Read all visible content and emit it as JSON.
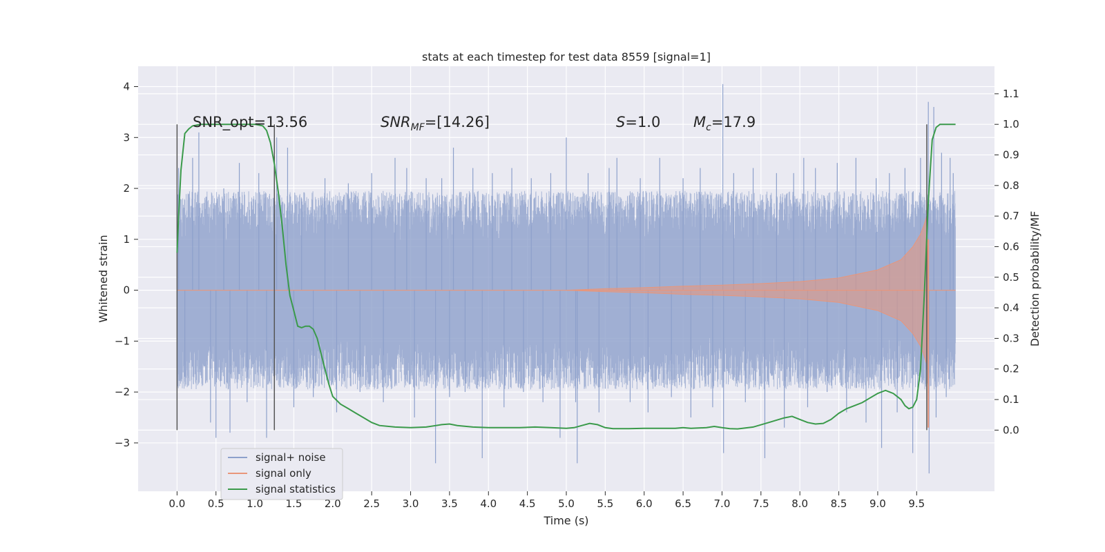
{
  "chart_data": {
    "type": "line",
    "title": "stats at each timestep for test data 8559 [signal=1]",
    "xlabel": "Time (s)",
    "ylabel": "Whitened strain",
    "ylabel_right": "Detection probability/MF",
    "xlim": [
      -0.5,
      10.5
    ],
    "ylim": [
      -3.95,
      4.4
    ],
    "ylim_right": [
      -0.2,
      1.19
    ],
    "xticks": [
      "0.0",
      "0.5",
      "1.0",
      "1.5",
      "2.0",
      "2.5",
      "3.0",
      "3.5",
      "4.0",
      "4.5",
      "5.0",
      "5.5",
      "6.0",
      "6.5",
      "7.0",
      "7.5",
      "8.0",
      "8.5",
      "9.0",
      "9.5"
    ],
    "yticks": [
      "4",
      "3",
      "2",
      "1",
      "0",
      "−1",
      "−2",
      "−3"
    ],
    "yticks_right": [
      "1.1",
      "1.0",
      "0.9",
      "0.8",
      "0.7",
      "0.6",
      "0.5",
      "0.4",
      "0.3",
      "0.2",
      "0.1",
      "0.0"
    ],
    "grid": true,
    "legend_position": "lower-left",
    "colors": {
      "noise": "#8da0cb",
      "signal": "#e9967a",
      "stats": "#3a9a4a",
      "background": "#eaeaf2",
      "grid": "#ffffff",
      "vline": "#555555"
    },
    "annotations": {
      "snr_opt": "SNR_opt=13.56",
      "snr_mf_base": "SNR",
      "snr_mf_sub": "MF",
      "snr_mf_rest": "=[14.26]",
      "s_base": "S",
      "s_rest": "=1.0",
      "mc_base": "M",
      "mc_sub": "c",
      "mc_rest": "=17.9"
    },
    "vlines_x": [
      0.0,
      1.25,
      9.63
    ],
    "series": [
      {
        "name": "signal+ noise",
        "noise_band": [
          -1.5,
          1.5
        ],
        "spikes": [
          [
            0.02,
            2.4
          ],
          [
            0.1,
            -1.7
          ],
          [
            0.2,
            2.6
          ],
          [
            0.28,
            3.1
          ],
          [
            0.43,
            -2.6
          ],
          [
            0.5,
            -2.9
          ],
          [
            0.6,
            2.0
          ],
          [
            0.68,
            -2.8
          ],
          [
            0.8,
            2.5
          ],
          [
            0.9,
            -2.2
          ],
          [
            1.05,
            2.3
          ],
          [
            1.15,
            -2.9
          ],
          [
            1.28,
            3.0
          ],
          [
            1.42,
            2.8
          ],
          [
            1.5,
            -2.3
          ],
          [
            1.6,
            1.8
          ],
          [
            1.75,
            -2.1
          ],
          [
            1.9,
            2.2
          ],
          [
            2.05,
            -2.4
          ],
          [
            2.2,
            2.1
          ],
          [
            2.35,
            -2.0
          ],
          [
            2.5,
            2.3
          ],
          [
            2.65,
            -2.2
          ],
          [
            2.8,
            2.6
          ],
          [
            2.95,
            2.4
          ],
          [
            3.05,
            -2.5
          ],
          [
            3.2,
            2.2
          ],
          [
            3.32,
            -3.4
          ],
          [
            3.4,
            2.2
          ],
          [
            3.5,
            -2.1
          ],
          [
            3.55,
            2.8
          ],
          [
            3.7,
            -2.0
          ],
          [
            3.8,
            2.4
          ],
          [
            3.92,
            -3.3
          ],
          [
            4.05,
            2.3
          ],
          [
            4.2,
            -2.3
          ],
          [
            4.3,
            2.4
          ],
          [
            4.45,
            -2.0
          ],
          [
            4.55,
            2.2
          ],
          [
            4.7,
            -2.2
          ],
          [
            4.8,
            2.3
          ],
          [
            4.92,
            -2.9
          ],
          [
            5.0,
            3.0
          ],
          [
            5.12,
            -2.2
          ],
          [
            5.14,
            -3.4
          ],
          [
            5.28,
            2.3
          ],
          [
            5.42,
            -2.4
          ],
          [
            5.55,
            2.4
          ],
          [
            5.65,
            2.6
          ],
          [
            5.82,
            -2.2
          ],
          [
            5.95,
            2.2
          ],
          [
            6.05,
            -2.4
          ],
          [
            6.2,
            2.6
          ],
          [
            6.35,
            -2.1
          ],
          [
            6.5,
            2.2
          ],
          [
            6.6,
            -2.5
          ],
          [
            6.72,
            2.4
          ],
          [
            6.88,
            -2.3
          ],
          [
            7.01,
            4.05
          ],
          [
            7.02,
            -3.2
          ],
          [
            7.15,
            2.3
          ],
          [
            7.3,
            -2.2
          ],
          [
            7.4,
            2.4
          ],
          [
            7.55,
            -3.3
          ],
          [
            7.7,
            2.3
          ],
          [
            7.8,
            -2.7
          ],
          [
            7.92,
            2.3
          ],
          [
            8.05,
            2.6
          ],
          [
            8.1,
            -2.3
          ],
          [
            8.2,
            2.4
          ],
          [
            8.35,
            -2.0
          ],
          [
            8.48,
            2.5
          ],
          [
            8.6,
            -2.4
          ],
          [
            8.72,
            2.6
          ],
          [
            8.85,
            -2.6
          ],
          [
            8.98,
            2.2
          ],
          [
            9.05,
            -3.1
          ],
          [
            9.15,
            2.3
          ],
          [
            9.25,
            -2.4
          ],
          [
            9.35,
            2.4
          ],
          [
            9.45,
            -3.2
          ],
          [
            9.55,
            2.6
          ],
          [
            9.65,
            3.7
          ],
          [
            9.66,
            -3.6
          ],
          [
            9.72,
            3.6
          ],
          [
            9.75,
            -2.5
          ],
          [
            9.82,
            2.7
          ],
          [
            9.88,
            -2.1
          ],
          [
            9.93,
            2.6
          ],
          [
            9.97,
            2.3
          ]
        ]
      },
      {
        "name": "signal only",
        "envelope": [
          [
            5.0,
            0.0
          ],
          [
            5.5,
            0.03
          ],
          [
            6.0,
            0.05
          ],
          [
            6.5,
            0.08
          ],
          [
            7.0,
            0.1
          ],
          [
            7.5,
            0.13
          ],
          [
            8.0,
            0.17
          ],
          [
            8.5,
            0.24
          ],
          [
            9.0,
            0.4
          ],
          [
            9.3,
            0.6
          ],
          [
            9.45,
            0.85
          ],
          [
            9.55,
            1.1
          ],
          [
            9.6,
            1.3
          ],
          [
            9.63,
            1.45
          ],
          [
            9.65,
            0.0
          ]
        ]
      },
      {
        "name": "signal statistics",
        "x": [
          0.0,
          0.02,
          0.05,
          0.1,
          0.15,
          0.2,
          0.3,
          0.4,
          0.5,
          0.6,
          0.7,
          0.8,
          0.9,
          1.0,
          1.1,
          1.15,
          1.2,
          1.25,
          1.3,
          1.35,
          1.4,
          1.45,
          1.5,
          1.55,
          1.6,
          1.65,
          1.7,
          1.75,
          1.8,
          1.85,
          1.9,
          1.95,
          2.0,
          2.1,
          2.2,
          2.3,
          2.4,
          2.5,
          2.6,
          2.8,
          3.0,
          3.2,
          3.4,
          3.5,
          3.6,
          3.8,
          4.0,
          4.2,
          4.4,
          4.6,
          4.8,
          5.0,
          5.1,
          5.2,
          5.3,
          5.4,
          5.5,
          5.6,
          5.8,
          6.0,
          6.2,
          6.4,
          6.5,
          6.6,
          6.8,
          6.9,
          7.0,
          7.1,
          7.2,
          7.4,
          7.6,
          7.8,
          7.9,
          8.0,
          8.1,
          8.2,
          8.3,
          8.4,
          8.5,
          8.6,
          8.7,
          8.8,
          8.9,
          9.0,
          9.05,
          9.1,
          9.2,
          9.3,
          9.35,
          9.4,
          9.45,
          9.5,
          9.55,
          9.6,
          9.65,
          9.7,
          9.75,
          9.8,
          9.9,
          10.0
        ],
        "values": [
          0.58,
          0.7,
          0.85,
          0.97,
          0.985,
          0.995,
          1.0,
          1.0,
          1.0,
          1.0,
          1.0,
          1.0,
          1.0,
          1.0,
          0.995,
          0.98,
          0.94,
          0.87,
          0.78,
          0.67,
          0.54,
          0.44,
          0.39,
          0.34,
          0.335,
          0.34,
          0.34,
          0.33,
          0.3,
          0.25,
          0.2,
          0.15,
          0.11,
          0.085,
          0.07,
          0.055,
          0.04,
          0.025,
          0.015,
          0.01,
          0.008,
          0.01,
          0.018,
          0.02,
          0.015,
          0.01,
          0.008,
          0.008,
          0.008,
          0.01,
          0.008,
          0.006,
          0.008,
          0.015,
          0.022,
          0.018,
          0.008,
          0.005,
          0.005,
          0.006,
          0.006,
          0.006,
          0.008,
          0.006,
          0.008,
          0.012,
          0.008,
          0.005,
          0.004,
          0.01,
          0.025,
          0.04,
          0.045,
          0.035,
          0.025,
          0.02,
          0.022,
          0.035,
          0.055,
          0.07,
          0.08,
          0.09,
          0.105,
          0.12,
          0.125,
          0.13,
          0.12,
          0.1,
          0.08,
          0.07,
          0.075,
          0.1,
          0.2,
          0.45,
          0.75,
          0.95,
          0.99,
          1.0,
          1.0,
          1.0
        ]
      }
    ]
  }
}
